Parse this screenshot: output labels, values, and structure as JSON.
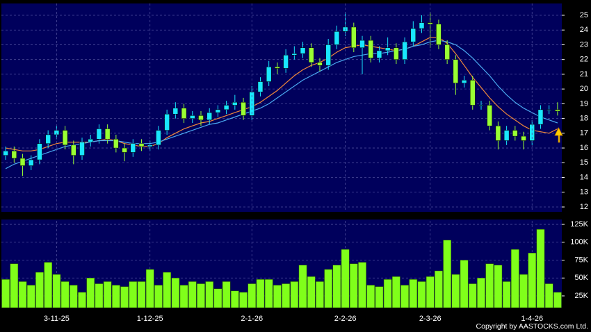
{
  "chart_data": [
    {
      "type": "candlestick",
      "open": [
        15.5,
        15.8,
        15.3,
        14.8,
        15.2,
        16.3,
        16.9,
        17.2,
        16.2,
        15.5,
        16.4,
        16.6,
        17.3,
        16.6,
        16.0,
        15.7,
        16.3,
        16.1,
        16.2,
        17.2,
        18.3,
        18.7,
        18.0,
        18.2,
        17.9,
        18.4,
        18.6,
        18.9,
        19.1,
        18.2,
        19.8,
        20.5,
        21.5,
        21.4,
        22.3,
        22.4,
        22.8,
        21.8,
        21.6,
        23.0,
        23.9,
        24.2,
        22.8,
        23.3,
        22.1,
        22.6,
        22.8,
        22.0,
        23.2,
        24.1,
        24.5,
        24.4,
        23.0,
        22.0,
        20.4,
        20.6,
        18.9,
        18.9,
        17.5,
        16.5,
        17.2,
        16.8,
        16.5,
        17.6,
        18.6,
        18.6
      ],
      "high": [
        16.1,
        16.1,
        15.6,
        15.5,
        16.6,
        17.2,
        17.5,
        17.5,
        16.5,
        16.7,
        16.9,
        17.6,
        17.6,
        16.9,
        16.3,
        16.6,
        16.6,
        16.5,
        17.5,
        18.6,
        19.1,
        19.0,
        18.5,
        18.5,
        18.7,
        18.9,
        19.2,
        19.6,
        19.4,
        20.2,
        20.8,
        21.9,
        21.8,
        22.7,
        22.9,
        23.2,
        23.1,
        22.1,
        23.4,
        24.3,
        25.2,
        24.5,
        23.6,
        23.6,
        22.9,
        23.5,
        23.1,
        23.5,
        24.6,
        25.0,
        25.2,
        24.7,
        23.3,
        22.3,
        20.9,
        20.9,
        19.2,
        19.2,
        17.8,
        17.5,
        17.5,
        17.1,
        17.9,
        18.9,
        18.9,
        19.1
      ],
      "low": [
        15.2,
        15.0,
        14.1,
        14.5,
        14.9,
        16.0,
        16.6,
        15.9,
        14.9,
        15.2,
        16.1,
        16.3,
        16.3,
        15.7,
        15.1,
        15.4,
        15.8,
        15.8,
        15.9,
        16.9,
        18.0,
        17.7,
        17.7,
        17.5,
        17.6,
        18.1,
        18.3,
        18.6,
        17.9,
        17.9,
        19.5,
        20.2,
        21.0,
        21.1,
        22.0,
        22.1,
        21.5,
        21.2,
        21.3,
        22.7,
        23.6,
        22.5,
        21.0,
        21.8,
        21.8,
        22.3,
        21.7,
        21.7,
        22.9,
        23.8,
        22.8,
        22.7,
        21.7,
        19.6,
        20.1,
        18.6,
        18.6,
        17.2,
        15.9,
        16.2,
        16.5,
        15.9,
        16.2,
        17.3,
        18.3,
        18.2
      ],
      "close": [
        15.8,
        15.3,
        14.8,
        15.2,
        16.3,
        16.9,
        17.2,
        16.2,
        15.5,
        16.4,
        16.6,
        17.3,
        16.6,
        16.0,
        15.7,
        16.3,
        16.1,
        16.2,
        17.2,
        18.3,
        18.7,
        18.0,
        18.2,
        17.9,
        18.4,
        18.6,
        18.9,
        19.1,
        18.2,
        19.8,
        20.5,
        21.5,
        21.4,
        22.3,
        22.4,
        22.8,
        21.8,
        21.6,
        23.0,
        23.9,
        24.2,
        22.8,
        23.3,
        22.1,
        22.6,
        22.8,
        22.0,
        23.2,
        24.1,
        24.5,
        24.4,
        23.0,
        22.0,
        20.4,
        20.6,
        18.9,
        18.9,
        17.5,
        16.5,
        17.2,
        16.8,
        16.5,
        17.6,
        18.6,
        18.6,
        18.5
      ],
      "up_color": "#19e6ff",
      "down_color": "#99ff33",
      "series": [
        {
          "color": "#f0883a",
          "values": [
            16.0,
            15.9,
            15.8,
            15.8,
            15.9,
            16.1,
            16.3,
            16.4,
            16.4,
            16.4,
            16.4,
            16.5,
            16.6,
            16.5,
            16.3,
            16.2,
            16.1,
            16.1,
            16.3,
            16.7,
            17.0,
            17.3,
            17.5,
            17.7,
            17.8,
            18.0,
            18.2,
            18.4,
            18.6,
            18.8,
            19.1,
            19.5,
            19.9,
            20.4,
            20.9,
            21.3,
            21.6,
            21.8,
            22.1,
            22.5,
            22.8,
            22.9,
            23.0,
            22.9,
            22.8,
            22.7,
            22.6,
            22.7,
            22.9,
            23.2,
            23.5,
            23.5,
            23.1,
            22.4,
            21.6,
            20.8,
            20.1,
            19.4,
            18.8,
            18.3,
            17.9,
            17.5,
            17.2,
            17.1,
            17.0,
            17.3
          ]
        },
        {
          "color": "#4aa8f0",
          "values": [
            14.6,
            14.9,
            15.1,
            15.3,
            15.5,
            15.7,
            15.9,
            16.1,
            16.2,
            16.3,
            16.4,
            16.5,
            16.5,
            16.5,
            16.4,
            16.3,
            16.3,
            16.3,
            16.4,
            16.6,
            16.8,
            17.0,
            17.2,
            17.4,
            17.6,
            17.7,
            17.9,
            18.1,
            18.3,
            18.5,
            18.7,
            19.0,
            19.4,
            19.8,
            20.2,
            20.6,
            20.9,
            21.2,
            21.5,
            21.8,
            22.0,
            22.2,
            22.3,
            22.4,
            22.4,
            22.5,
            22.6,
            22.7,
            22.9,
            23.0,
            23.2,
            23.3,
            23.2,
            23.0,
            22.6,
            22.1,
            21.5,
            20.9,
            20.2,
            19.6,
            19.1,
            18.7,
            18.4,
            18.1,
            17.9,
            17.7
          ]
        }
      ],
      "ylim": [
        11.67,
        25.8
      ],
      "yticks": [
        12,
        13,
        14,
        15,
        16,
        17,
        18,
        19,
        20,
        21,
        22,
        23,
        24,
        25
      ],
      "grid": true
    },
    {
      "type": "bar",
      "categories": [
        null,
        null,
        null,
        null,
        null,
        null,
        "3-11-25",
        null,
        null,
        null,
        null,
        null,
        null,
        null,
        null,
        null,
        null,
        "1-12-25",
        null,
        null,
        null,
        null,
        null,
        null,
        null,
        null,
        null,
        null,
        null,
        "2-1-26",
        null,
        null,
        null,
        null,
        null,
        null,
        null,
        null,
        null,
        null,
        "2-2-26",
        null,
        null,
        null,
        null,
        null,
        null,
        null,
        null,
        null,
        "2-3-26",
        null,
        null,
        null,
        null,
        null,
        null,
        null,
        null,
        null,
        null,
        null,
        "1-4-26",
        null,
        null,
        null
      ],
      "values": [
        48000,
        70000,
        45000,
        40000,
        58000,
        72000,
        55000,
        45000,
        40000,
        30000,
        50000,
        42000,
        45000,
        40000,
        38000,
        45000,
        45000,
        62000,
        40000,
        58000,
        50000,
        40000,
        45000,
        42000,
        45000,
        35000,
        45000,
        32000,
        30000,
        42000,
        48000,
        48000,
        40000,
        42000,
        45000,
        68000,
        52000,
        45000,
        62000,
        68000,
        90000,
        70000,
        72000,
        40000,
        38000,
        48000,
        52000,
        40000,
        48000,
        45000,
        52000,
        60000,
        103000,
        55000,
        75000,
        42000,
        50000,
        70000,
        68000,
        45000,
        90000,
        55000,
        85000,
        118000,
        42000,
        30000
      ],
      "color": "#80ff1a",
      "ylim": [
        8500,
        129900
      ],
      "yticks": [
        {
          "value": 25000,
          "label": "25K"
        },
        {
          "value": 50000,
          "label": "50K"
        },
        {
          "value": 75000,
          "label": "75K"
        },
        {
          "value": 100000,
          "label": "100K"
        },
        {
          "value": 125000,
          "label": "125K"
        }
      ],
      "grid": true
    }
  ],
  "footer": {
    "copyright": "Copyright by AASTOCKS.com Ltd."
  }
}
